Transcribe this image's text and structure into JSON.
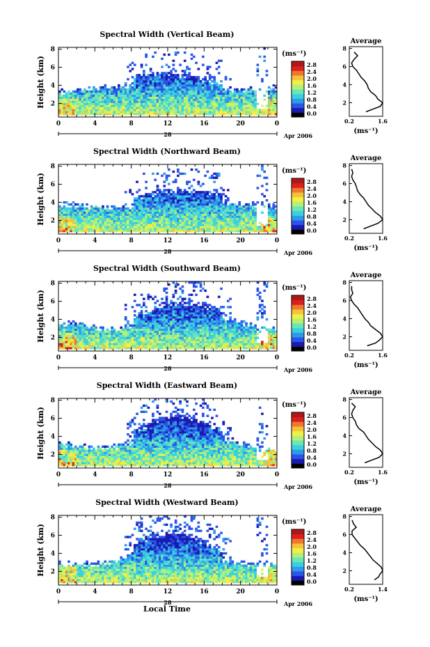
{
  "figure": {
    "x_axis_title": "Local Time",
    "date_label": "Apr 2006",
    "day_label": "28",
    "y_axis_title": "Height (km)",
    "unit_label": "(ms⁻¹)",
    "average_title": "Average",
    "average_unit_label": "(ms⁻¹)",
    "colorbar_ticks": [
      "0.0",
      "0.4",
      "0.8",
      "1.2",
      "1.6",
      "2.0",
      "2.4",
      "2.8"
    ],
    "colorbar_colors": [
      "#000000",
      "#1a1ab0",
      "#2a55e8",
      "#2f9ae8",
      "#39d0e0",
      "#6ee6b4",
      "#b4f078",
      "#f0f046",
      "#f5c23a",
      "#f0782d",
      "#dc2020",
      "#b01818"
    ]
  },
  "chart_data": [
    {
      "type": "heatmap",
      "title": "Spectral Width (Vertical Beam)",
      "xlabel": "Local Time",
      "ylabel": "Height (km)",
      "x_ticks": [
        "0",
        "4",
        "8",
        "12",
        "16",
        "20",
        "0"
      ],
      "y_ticks": [
        "2",
        "4",
        "6",
        "8"
      ],
      "xlim": [
        0,
        24
      ],
      "ylim": [
        0.5,
        8.2
      ],
      "colorbar": {
        "label": "(ms⁻¹)",
        "ticks": [
          0.0,
          0.4,
          0.8,
          1.2,
          1.6,
          2.0,
          2.4,
          2.8
        ]
      },
      "average_profile": {
        "title": "Average",
        "xlabel": "(ms⁻¹)",
        "x_ticks": [
          "0.2",
          "1.6"
        ],
        "xlim": [
          0.2,
          1.6
        ],
        "y_ticks": [
          "2",
          "4",
          "6",
          "8"
        ],
        "height_km": [
          1.0,
          1.3,
          1.6,
          2.0,
          2.4,
          2.8,
          3.2,
          3.6,
          4.0,
          4.4,
          4.8,
          5.2,
          5.6,
          6.0,
          6.4,
          6.8,
          7.2,
          7.6
        ],
        "width_ms": [
          0.9,
          1.2,
          1.5,
          1.6,
          1.4,
          1.3,
          1.1,
          1.0,
          0.95,
          0.85,
          0.7,
          0.6,
          0.5,
          0.35,
          0.3,
          0.4,
          0.55,
          0.4
        ]
      }
    },
    {
      "type": "heatmap",
      "title": "Spectral Width (Northward Beam)",
      "xlabel": "Local Time",
      "ylabel": "Height (km)",
      "x_ticks": [
        "0",
        "4",
        "8",
        "12",
        "16",
        "20",
        "0"
      ],
      "y_ticks": [
        "2",
        "4",
        "6",
        "8"
      ],
      "xlim": [
        0,
        24
      ],
      "ylim": [
        0.5,
        8.2
      ],
      "colorbar": {
        "label": "(ms⁻¹)",
        "ticks": [
          0.0,
          0.4,
          0.8,
          1.2,
          1.6,
          2.0,
          2.4,
          2.8
        ]
      },
      "average_profile": {
        "title": "Average",
        "xlabel": "(ms⁻¹)",
        "x_ticks": [
          "0.2",
          "1.6"
        ],
        "xlim": [
          0.2,
          1.6
        ],
        "y_ticks": [
          "2",
          "4",
          "6",
          "8"
        ],
        "height_km": [
          1.0,
          1.3,
          1.6,
          2.0,
          2.4,
          2.8,
          3.2,
          3.6,
          4.0,
          4.4,
          4.8,
          5.2,
          5.6,
          6.0,
          6.4,
          6.8,
          7.2,
          7.6
        ],
        "width_ms": [
          0.8,
          1.1,
          1.4,
          1.6,
          1.5,
          1.3,
          1.15,
          1.0,
          0.9,
          0.8,
          0.65,
          0.55,
          0.5,
          0.45,
          0.35,
          0.3,
          0.35,
          0.3
        ]
      }
    },
    {
      "type": "heatmap",
      "title": "Spectral Width (Southward Beam)",
      "xlabel": "Local Time",
      "ylabel": "Height (km)",
      "x_ticks": [
        "0",
        "4",
        "8",
        "12",
        "16",
        "20",
        "0"
      ],
      "y_ticks": [
        "2",
        "4",
        "6",
        "8"
      ],
      "xlim": [
        0,
        24
      ],
      "ylim": [
        0.5,
        8.2
      ],
      "colorbar": {
        "label": "(ms⁻¹)",
        "ticks": [
          0.0,
          0.4,
          0.8,
          1.2,
          1.6,
          2.0,
          2.4,
          2.8
        ]
      },
      "average_profile": {
        "title": "Average",
        "xlabel": "(ms⁻¹)",
        "x_ticks": [
          "0.2",
          "1.6"
        ],
        "xlim": [
          0.2,
          1.6
        ],
        "y_ticks": [
          "2",
          "4",
          "6",
          "8"
        ],
        "height_km": [
          1.0,
          1.3,
          1.6,
          2.0,
          2.4,
          2.8,
          3.2,
          3.6,
          4.0,
          4.4,
          4.8,
          5.2,
          5.6,
          6.0,
          6.4,
          6.8,
          7.2,
          7.6
        ],
        "width_ms": [
          0.95,
          1.3,
          1.45,
          1.6,
          1.5,
          1.3,
          1.1,
          1.0,
          0.85,
          0.75,
          0.65,
          0.55,
          0.4,
          0.3,
          0.25,
          0.35,
          0.3,
          0.3
        ]
      }
    },
    {
      "type": "heatmap",
      "title": "Spectral Width (Eastward Beam)",
      "xlabel": "Local Time",
      "ylabel": "Height (km)",
      "x_ticks": [
        "0",
        "4",
        "8",
        "12",
        "16",
        "20",
        "0"
      ],
      "y_ticks": [
        "2",
        "4",
        "6",
        "8"
      ],
      "xlim": [
        0,
        24
      ],
      "ylim": [
        0.5,
        8.2
      ],
      "colorbar": {
        "label": "(ms⁻¹)",
        "ticks": [
          0.0,
          0.4,
          0.8,
          1.2,
          1.6,
          2.0,
          2.4,
          2.8
        ]
      },
      "average_profile": {
        "title": "Average",
        "xlabel": "(ms⁻¹)",
        "x_ticks": [
          "0.2",
          "1.6"
        ],
        "xlim": [
          0.2,
          1.6
        ],
        "y_ticks": [
          "2",
          "4",
          "6",
          "8"
        ],
        "height_km": [
          1.0,
          1.3,
          1.6,
          2.0,
          2.4,
          2.8,
          3.2,
          3.6,
          4.0,
          4.4,
          4.8,
          5.2,
          5.6,
          6.0,
          6.4,
          6.8,
          7.2,
          7.6
        ],
        "width_ms": [
          0.85,
          1.15,
          1.45,
          1.6,
          1.5,
          1.3,
          1.15,
          1.0,
          0.9,
          0.8,
          0.6,
          0.5,
          0.45,
          0.35,
          0.3,
          0.35,
          0.45,
          0.3
        ]
      }
    },
    {
      "type": "heatmap",
      "title": "Spectral Width (Westward Beam)",
      "xlabel": "Local Time",
      "ylabel": "Height (km)",
      "x_ticks": [
        "0",
        "4",
        "8",
        "12",
        "16",
        "20",
        "0"
      ],
      "y_ticks": [
        "2",
        "4",
        "6",
        "8"
      ],
      "xlim": [
        0,
        24
      ],
      "ylim": [
        0.5,
        8.2
      ],
      "colorbar": {
        "label": "(ms⁻¹)",
        "ticks": [
          0.0,
          0.4,
          0.8,
          1.2,
          1.6,
          2.0,
          2.4,
          2.8
        ]
      },
      "average_profile": {
        "title": "Average",
        "xlabel": "(ms⁻¹)",
        "x_ticks": [
          "0.2",
          "1.4"
        ],
        "xlim": [
          0.2,
          1.4
        ],
        "y_ticks": [
          "2",
          "4",
          "6",
          "8"
        ],
        "height_km": [
          1.0,
          1.3,
          1.6,
          2.0,
          2.4,
          2.8,
          3.2,
          3.6,
          4.0,
          4.4,
          4.8,
          5.2,
          5.6,
          6.0,
          6.4,
          6.8,
          7.2,
          7.6
        ],
        "width_ms": [
          1.1,
          1.25,
          1.3,
          1.4,
          1.35,
          1.2,
          1.05,
          0.95,
          0.85,
          0.75,
          0.6,
          0.5,
          0.4,
          0.3,
          0.3,
          0.45,
          0.35,
          0.3
        ]
      }
    }
  ]
}
